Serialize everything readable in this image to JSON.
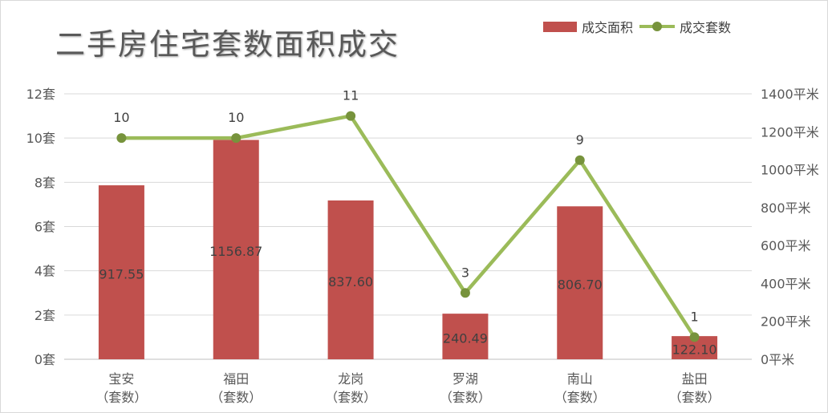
{
  "chart_data": {
    "type": "bar",
    "title": "二手房住宅套数面积成交",
    "categories": [
      "宝安\n（套数）",
      "福田\n（套数）",
      "龙岗\n（套数）",
      "罗湖\n（套数）",
      "南山\n（套数）",
      "盐田\n（套数）"
    ],
    "series": [
      {
        "name": "成交面积",
        "type": "bar",
        "axis": "right",
        "values": [
          917.55,
          1156.87,
          837.6,
          240.49,
          806.7,
          122.1
        ],
        "labels": [
          "917.55",
          "1156.87",
          "837.60",
          "240.49",
          "806.70",
          "122.10"
        ],
        "color": "#c0504d"
      },
      {
        "name": "成交套数",
        "type": "line",
        "axis": "left",
        "values": [
          10,
          10,
          11,
          3,
          9,
          1
        ],
        "labels": [
          "10",
          "10",
          "11",
          "3",
          "9",
          "1"
        ],
        "color": "#9bbb59",
        "marker_color": "#77933c"
      }
    ],
    "y_left": {
      "range": [
        0,
        12
      ],
      "ticks": [
        0,
        2,
        4,
        6,
        8,
        10,
        12
      ],
      "tick_labels": [
        "0套",
        "2套",
        "4套",
        "6套",
        "8套",
        "10套",
        "12套"
      ]
    },
    "y_right": {
      "range": [
        0,
        1400
      ],
      "ticks": [
        0,
        200,
        400,
        600,
        800,
        1000,
        1200,
        1400
      ],
      "tick_labels": [
        "0平米",
        "200平米",
        "400平米",
        "600平米",
        "800平米",
        "1000平米",
        "1200平米",
        "1400平米"
      ]
    },
    "grid": true,
    "legend": "top-right"
  }
}
